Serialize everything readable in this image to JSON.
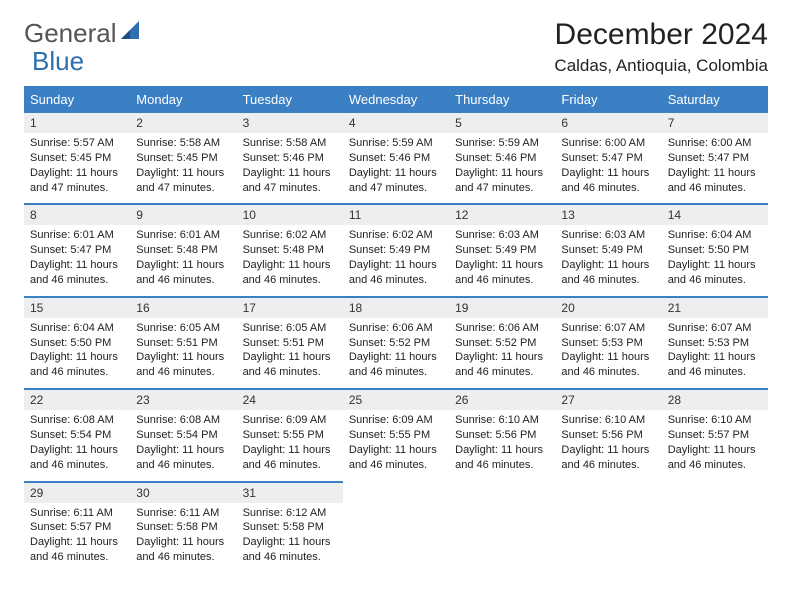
{
  "logo": {
    "text1": "General",
    "text2": "Blue"
  },
  "title": "December 2024",
  "location": "Caldas, Antioquia, Colombia",
  "colors": {
    "header_bg": "#3b7fc4",
    "daynum_bg": "#eceeef",
    "page_bg": "#ffffff"
  },
  "weekdays": [
    "Sunday",
    "Monday",
    "Tuesday",
    "Wednesday",
    "Thursday",
    "Friday",
    "Saturday"
  ],
  "weeks": [
    [
      {
        "n": "1",
        "sr": "Sunrise: 5:57 AM",
        "ss": "Sunset: 5:45 PM",
        "dl": "Daylight: 11 hours and 47 minutes."
      },
      {
        "n": "2",
        "sr": "Sunrise: 5:58 AM",
        "ss": "Sunset: 5:45 PM",
        "dl": "Daylight: 11 hours and 47 minutes."
      },
      {
        "n": "3",
        "sr": "Sunrise: 5:58 AM",
        "ss": "Sunset: 5:46 PM",
        "dl": "Daylight: 11 hours and 47 minutes."
      },
      {
        "n": "4",
        "sr": "Sunrise: 5:59 AM",
        "ss": "Sunset: 5:46 PM",
        "dl": "Daylight: 11 hours and 47 minutes."
      },
      {
        "n": "5",
        "sr": "Sunrise: 5:59 AM",
        "ss": "Sunset: 5:46 PM",
        "dl": "Daylight: 11 hours and 47 minutes."
      },
      {
        "n": "6",
        "sr": "Sunrise: 6:00 AM",
        "ss": "Sunset: 5:47 PM",
        "dl": "Daylight: 11 hours and 46 minutes."
      },
      {
        "n": "7",
        "sr": "Sunrise: 6:00 AM",
        "ss": "Sunset: 5:47 PM",
        "dl": "Daylight: 11 hours and 46 minutes."
      }
    ],
    [
      {
        "n": "8",
        "sr": "Sunrise: 6:01 AM",
        "ss": "Sunset: 5:47 PM",
        "dl": "Daylight: 11 hours and 46 minutes."
      },
      {
        "n": "9",
        "sr": "Sunrise: 6:01 AM",
        "ss": "Sunset: 5:48 PM",
        "dl": "Daylight: 11 hours and 46 minutes."
      },
      {
        "n": "10",
        "sr": "Sunrise: 6:02 AM",
        "ss": "Sunset: 5:48 PM",
        "dl": "Daylight: 11 hours and 46 minutes."
      },
      {
        "n": "11",
        "sr": "Sunrise: 6:02 AM",
        "ss": "Sunset: 5:49 PM",
        "dl": "Daylight: 11 hours and 46 minutes."
      },
      {
        "n": "12",
        "sr": "Sunrise: 6:03 AM",
        "ss": "Sunset: 5:49 PM",
        "dl": "Daylight: 11 hours and 46 minutes."
      },
      {
        "n": "13",
        "sr": "Sunrise: 6:03 AM",
        "ss": "Sunset: 5:49 PM",
        "dl": "Daylight: 11 hours and 46 minutes."
      },
      {
        "n": "14",
        "sr": "Sunrise: 6:04 AM",
        "ss": "Sunset: 5:50 PM",
        "dl": "Daylight: 11 hours and 46 minutes."
      }
    ],
    [
      {
        "n": "15",
        "sr": "Sunrise: 6:04 AM",
        "ss": "Sunset: 5:50 PM",
        "dl": "Daylight: 11 hours and 46 minutes."
      },
      {
        "n": "16",
        "sr": "Sunrise: 6:05 AM",
        "ss": "Sunset: 5:51 PM",
        "dl": "Daylight: 11 hours and 46 minutes."
      },
      {
        "n": "17",
        "sr": "Sunrise: 6:05 AM",
        "ss": "Sunset: 5:51 PM",
        "dl": "Daylight: 11 hours and 46 minutes."
      },
      {
        "n": "18",
        "sr": "Sunrise: 6:06 AM",
        "ss": "Sunset: 5:52 PM",
        "dl": "Daylight: 11 hours and 46 minutes."
      },
      {
        "n": "19",
        "sr": "Sunrise: 6:06 AM",
        "ss": "Sunset: 5:52 PM",
        "dl": "Daylight: 11 hours and 46 minutes."
      },
      {
        "n": "20",
        "sr": "Sunrise: 6:07 AM",
        "ss": "Sunset: 5:53 PM",
        "dl": "Daylight: 11 hours and 46 minutes."
      },
      {
        "n": "21",
        "sr": "Sunrise: 6:07 AM",
        "ss": "Sunset: 5:53 PM",
        "dl": "Daylight: 11 hours and 46 minutes."
      }
    ],
    [
      {
        "n": "22",
        "sr": "Sunrise: 6:08 AM",
        "ss": "Sunset: 5:54 PM",
        "dl": "Daylight: 11 hours and 46 minutes."
      },
      {
        "n": "23",
        "sr": "Sunrise: 6:08 AM",
        "ss": "Sunset: 5:54 PM",
        "dl": "Daylight: 11 hours and 46 minutes."
      },
      {
        "n": "24",
        "sr": "Sunrise: 6:09 AM",
        "ss": "Sunset: 5:55 PM",
        "dl": "Daylight: 11 hours and 46 minutes."
      },
      {
        "n": "25",
        "sr": "Sunrise: 6:09 AM",
        "ss": "Sunset: 5:55 PM",
        "dl": "Daylight: 11 hours and 46 minutes."
      },
      {
        "n": "26",
        "sr": "Sunrise: 6:10 AM",
        "ss": "Sunset: 5:56 PM",
        "dl": "Daylight: 11 hours and 46 minutes."
      },
      {
        "n": "27",
        "sr": "Sunrise: 6:10 AM",
        "ss": "Sunset: 5:56 PM",
        "dl": "Daylight: 11 hours and 46 minutes."
      },
      {
        "n": "28",
        "sr": "Sunrise: 6:10 AM",
        "ss": "Sunset: 5:57 PM",
        "dl": "Daylight: 11 hours and 46 minutes."
      }
    ],
    [
      {
        "n": "29",
        "sr": "Sunrise: 6:11 AM",
        "ss": "Sunset: 5:57 PM",
        "dl": "Daylight: 11 hours and 46 minutes."
      },
      {
        "n": "30",
        "sr": "Sunrise: 6:11 AM",
        "ss": "Sunset: 5:58 PM",
        "dl": "Daylight: 11 hours and 46 minutes."
      },
      {
        "n": "31",
        "sr": "Sunrise: 6:12 AM",
        "ss": "Sunset: 5:58 PM",
        "dl": "Daylight: 11 hours and 46 minutes."
      },
      null,
      null,
      null,
      null
    ]
  ]
}
